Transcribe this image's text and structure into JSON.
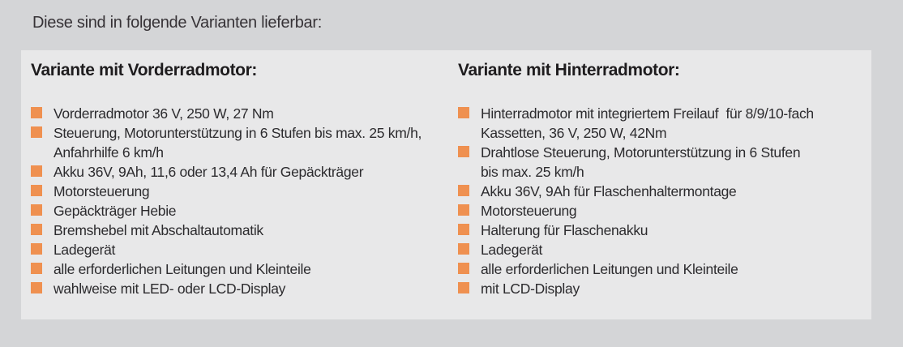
{
  "page": {
    "title": "Diese sind in folgende Varianten lieferbar:"
  },
  "panel": {
    "columns": [
      {
        "heading": "Variante mit Vorderradmotor:",
        "items": [
          "Vorderradmotor 36 V, 250 W, 27 Nm",
          "Steuerung, Motorunterstützung in 6 Stufen bis max. 25 km/h,\nAnfahrhilfe 6 km/h",
          "Akku 36V, 9Ah, 11,6 oder 13,4 Ah für Gepäckträger",
          "Motorsteuerung",
          "Gepäckträger Hebie",
          "Bremshebel mit Abschaltautomatik",
          "Ladegerät",
          "alle erforderlichen Leitungen und Kleinteile",
          "wahlweise mit LED- oder LCD-Display"
        ]
      },
      {
        "heading": "Variante mit Hinterradmotor:",
        "items": [
          "Hinterradmotor mit integriertem Freilauf  für 8/9/10-fach\nKassetten, 36 V, 250 W, 42Nm",
          "Drahtlose Steuerung, Motorunterstützung in 6 Stufen\nbis max. 25 km/h",
          "Akku 36V, 9Ah für Flaschenhaltermontage",
          "Motorsteuerung",
          "Halterung für Flaschenakku",
          "Ladegerät",
          "alle erforderlichen Leitungen und Kleinteile",
          "mit LCD-Display"
        ]
      }
    ]
  },
  "icons": {
    "bullet": "square-bullet-icon"
  },
  "colors": {
    "background": "#d4d5d7",
    "panel": "#e8e8e9",
    "bullet": "#ef9050",
    "heading_text": "#1e1c1e",
    "body_text": "#2c2b2e"
  }
}
